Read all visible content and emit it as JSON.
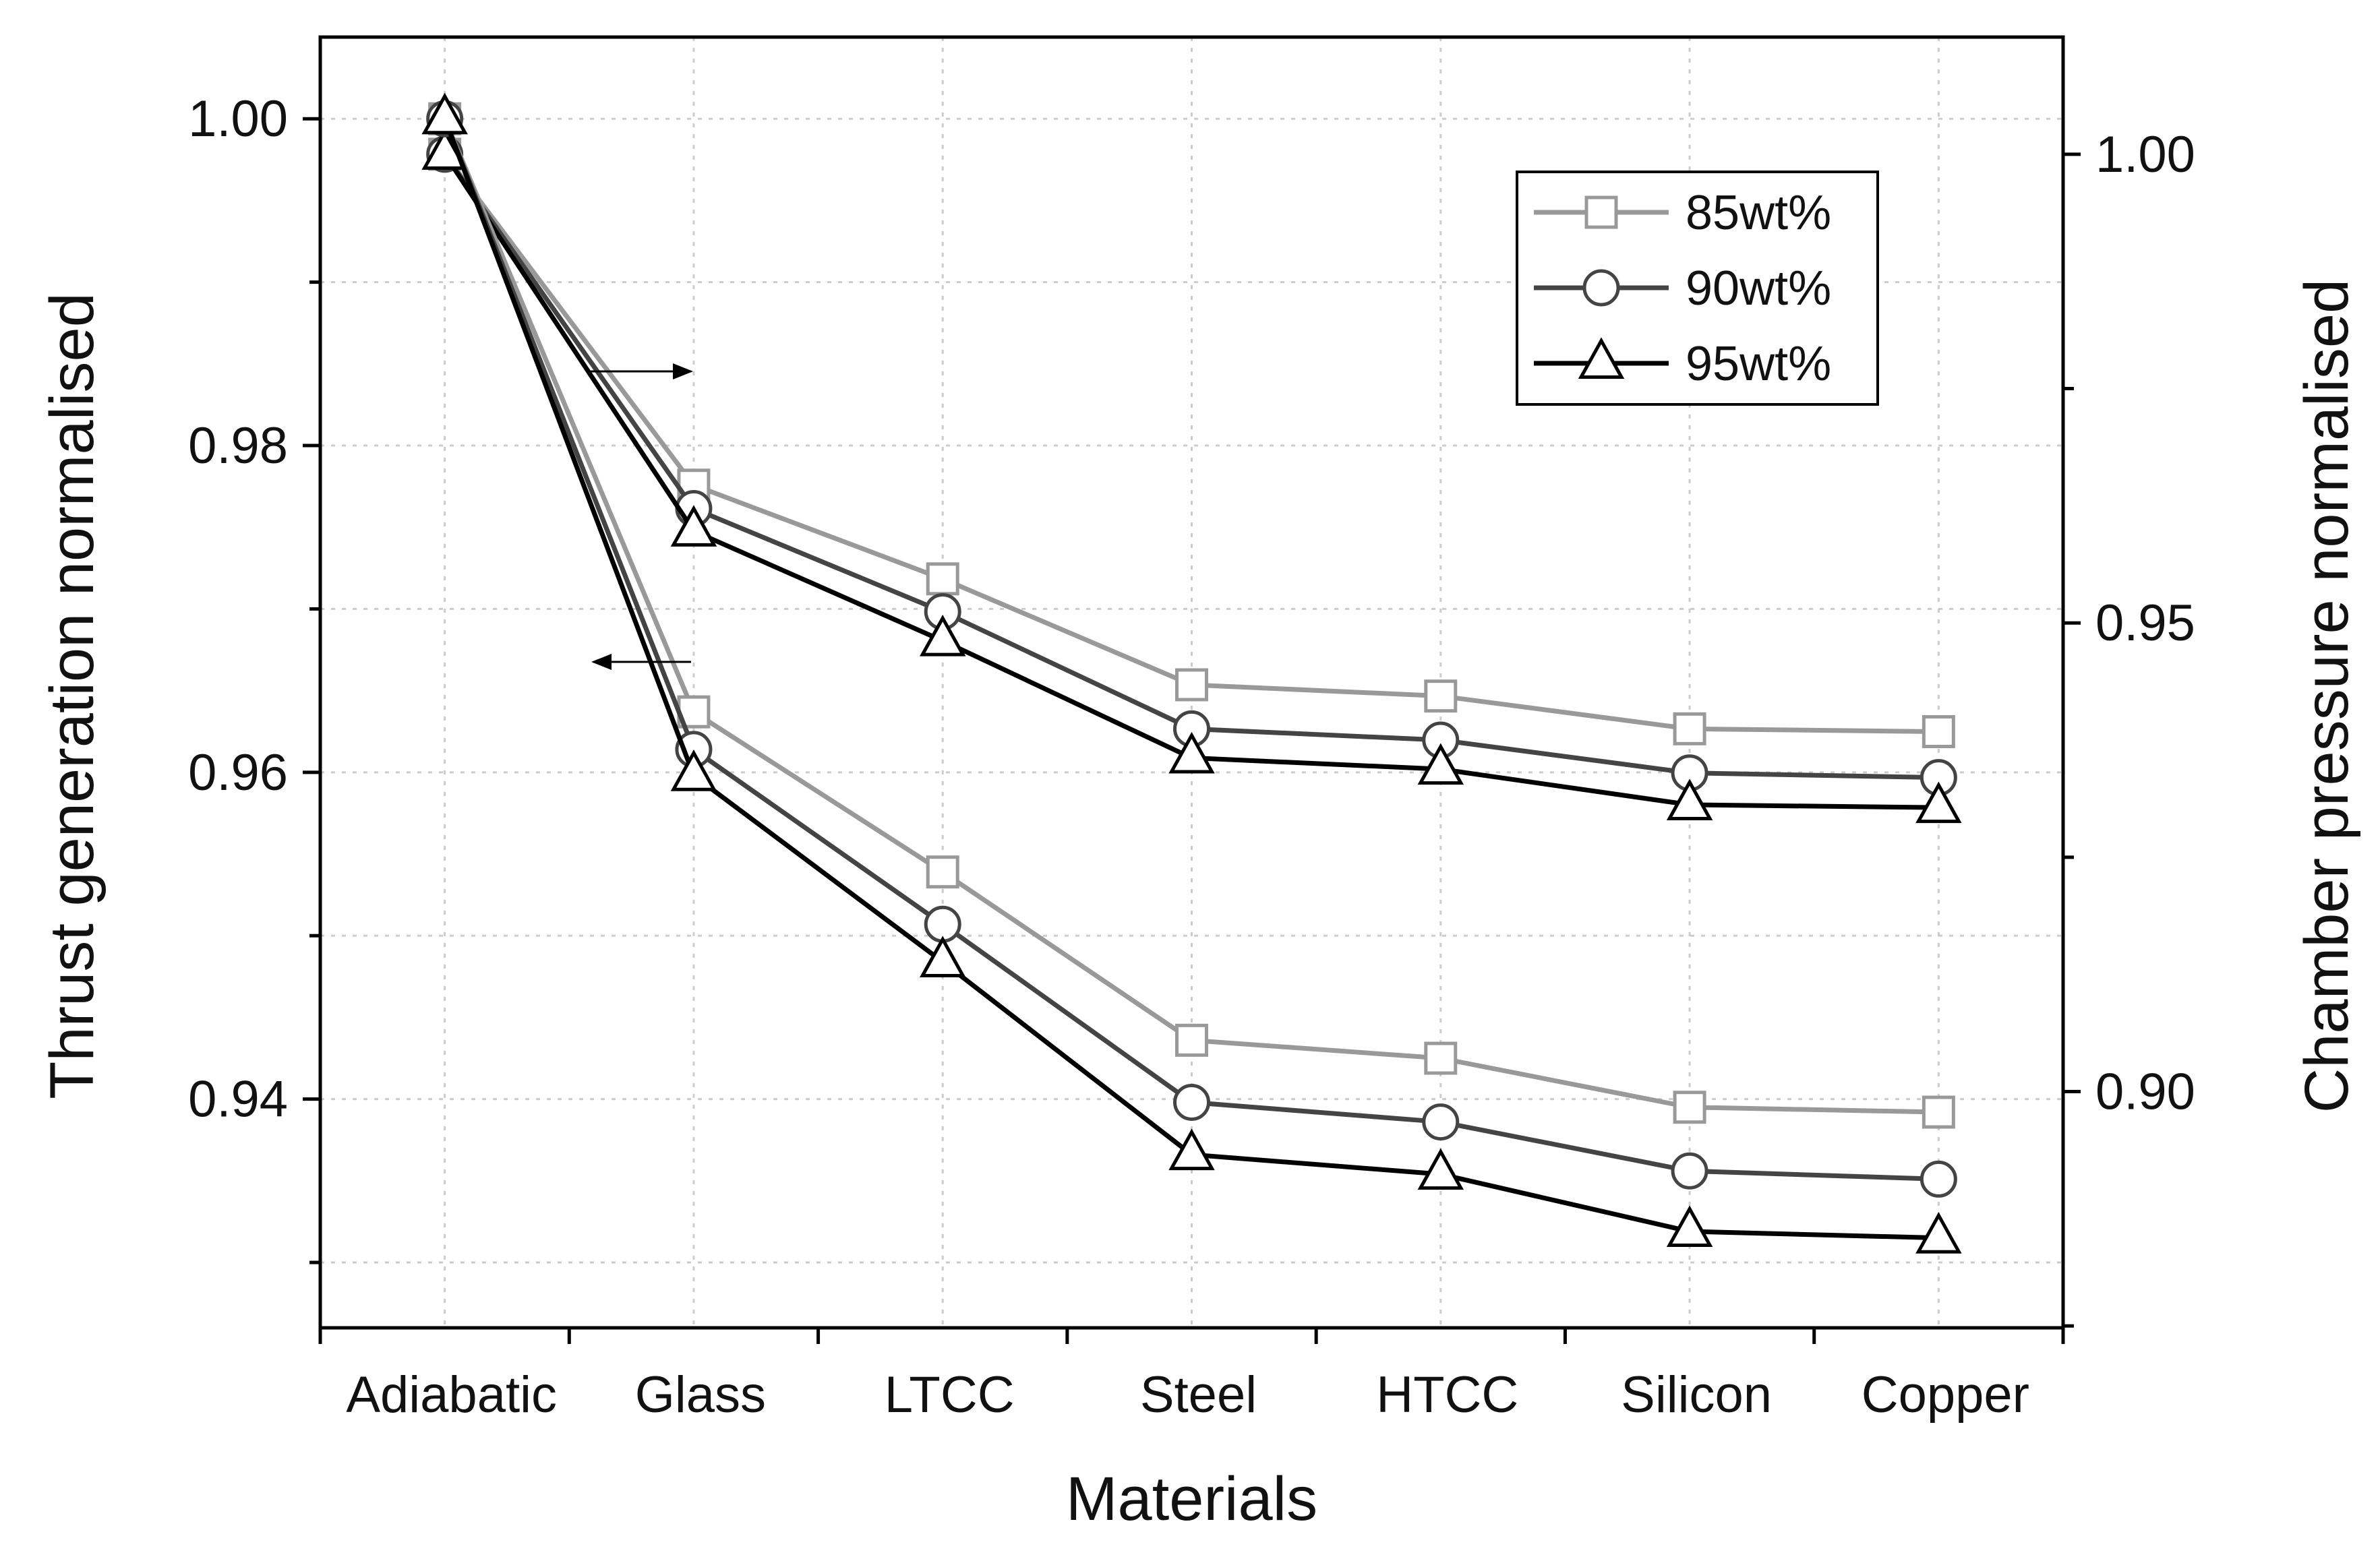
{
  "chart_data": {
    "type": "line",
    "title": "",
    "xlabel": "Materials",
    "ylabel_left": "Thrust generation normalised",
    "ylabel_right": "Chamber pressure normalised",
    "categories": [
      "Adiabatic",
      "Glass",
      "LTCC",
      "Steel",
      "HTCC",
      "Silicon",
      "Copper"
    ],
    "ylim_left": [
      0.926,
      1.005
    ],
    "ylim_right": [
      0.8748,
      1.0125
    ],
    "left_ticks": [
      "1.00",
      "0.98",
      "0.96",
      "0.94"
    ],
    "right_ticks": [
      "1.00",
      "0.95",
      "0.90"
    ],
    "grid": true,
    "legend_position": "top-right",
    "legend": [
      {
        "label": "85wt%",
        "color": "#999999",
        "marker": "square"
      },
      {
        "label": "90wt%",
        "color": "#444444",
        "marker": "circle"
      },
      {
        "label": "95wt%",
        "color": "#000000",
        "marker": "triangle"
      }
    ],
    "series": [
      {
        "name": "85wt%",
        "quantity": "chamber pressure",
        "axis": "right",
        "color": "#999999",
        "marker": "square",
        "values": [
          1.0,
          0.9647,
          0.9547,
          0.9434,
          0.9422,
          0.9387,
          0.9384
        ]
      },
      {
        "name": "90wt%",
        "quantity": "chamber pressure",
        "axis": "right",
        "color": "#444444",
        "marker": "circle",
        "values": [
          1.0,
          0.9622,
          0.9512,
          0.9387,
          0.9375,
          0.934,
          0.9335
        ]
      },
      {
        "name": "95wt%",
        "quantity": "chamber pressure",
        "axis": "right",
        "color": "#000000",
        "marker": "triangle",
        "values": [
          1.0,
          0.9598,
          0.9481,
          0.9356,
          0.9344,
          0.9306,
          0.9303
        ]
      },
      {
        "name": "85wt%",
        "quantity": "thrust",
        "axis": "left",
        "color": "#999999",
        "marker": "square",
        "values": [
          1.0,
          0.9637,
          0.9539,
          0.9436,
          0.9425,
          0.9395,
          0.9392
        ]
      },
      {
        "name": "90wt%",
        "quantity": "thrust",
        "axis": "left",
        "color": "#444444",
        "marker": "circle",
        "values": [
          1.0,
          0.9614,
          0.9507,
          0.9398,
          0.9386,
          0.9356,
          0.9351
        ]
      },
      {
        "name": "95wt%",
        "quantity": "thrust",
        "axis": "left",
        "color": "#000000",
        "marker": "triangle",
        "values": [
          1.0,
          0.9598,
          0.9484,
          0.9366,
          0.9354,
          0.9319,
          0.9315
        ]
      }
    ],
    "annotations": [
      {
        "type": "arrow",
        "direction": "right",
        "meaning": "upper curves read on right axis"
      },
      {
        "type": "arrow",
        "direction": "left",
        "meaning": "lower curves read on left axis"
      }
    ]
  }
}
